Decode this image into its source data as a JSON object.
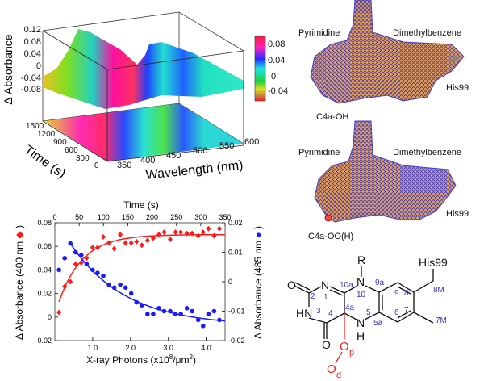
{
  "panel_3d": {
    "z_label": "Δ Absorbance",
    "z_ticks": [
      "0.12",
      "0.08",
      "0.04",
      "0",
      "-0.04",
      "-0.08"
    ],
    "time_label": "Time (s)",
    "time_ticks": [
      "1500",
      "1200",
      "900",
      "600",
      "300",
      "0"
    ],
    "wavelength_label": "Wavelength (nm)",
    "wavelength_ticks": [
      "350",
      "400",
      "450",
      "500",
      "550",
      "600"
    ],
    "colorbar_ticks": [
      "0.08",
      "0.04",
      "0",
      "-0.04"
    ]
  },
  "density_top": {
    "labels": {
      "pyrimidine": "Pyrimidine",
      "dimethylbenzene": "Dimethylbenzene",
      "his": "His99",
      "c4a": "C4a-OH"
    }
  },
  "density_bottom": {
    "labels": {
      "pyrimidine": "Pyrimidine",
      "dimethylbenzene": "Dimethylbenzene",
      "his": "His99",
      "c4a": "C4a-OO(H)"
    }
  },
  "structure": {
    "R": "R",
    "his": "His99",
    "O2": "O",
    "N1": "N",
    "HN3": "HN",
    "O4": "O",
    "N10": "N",
    "N5": "N",
    "H5": "H",
    "Op": "O",
    "Op_sub": "p",
    "Od": "O",
    "Od_sub": "d",
    "numbers": {
      "n2": "2",
      "n1": "1",
      "n3": "3",
      "n4": "4",
      "n4a": "4a",
      "n10a": "10a",
      "n10": "10",
      "n5": "5",
      "n5a": "5a",
      "n9a": "9a",
      "n9": "9",
      "n8": "8",
      "n7": "7",
      "n6": "6",
      "n8M": "8M",
      "n7M": "7M"
    }
  },
  "chart_data": {
    "type": "scatter",
    "title": "",
    "xlabel": "X-ray Photons (x10^8/μm^2)",
    "xlabel_parts": {
      "main": "X-ray Photons (x10",
      "sup1": "8",
      "mid": "/μm",
      "sup2": "2",
      "end": ")"
    },
    "xlim": [
      0,
      4.5
    ],
    "xticks": [
      "1.0",
      "2.0",
      "3.0",
      "4.0"
    ],
    "x2label": "Time (s)",
    "x2lim": [
      0,
      350
    ],
    "x2ticks": [
      "0",
      "50",
      "100",
      "150",
      "200",
      "250",
      "300",
      "350"
    ],
    "ylabel": "Δ Absorbance (400 nm",
    "ylim": [
      -0.02,
      0.08
    ],
    "yticks": [
      "0.08",
      "0.06",
      "0.04",
      "0.02",
      "0",
      "-0.02"
    ],
    "y2label": "Δ Absorbance (485 nm",
    "y2lim": [
      -0.02,
      0.02
    ],
    "y2ticks": [
      "0.02",
      "0.01",
      "0",
      "-0.01",
      "-0.02"
    ],
    "colors": {
      "red": "#ff1a1a",
      "blue": "#1a1aff"
    },
    "series": [
      {
        "name": "400 nm",
        "axis": "left",
        "marker": "diamond",
        "x": [
          0.11,
          0.26,
          0.41,
          0.55,
          0.7,
          0.84,
          1.0,
          1.13,
          1.28,
          1.43,
          1.57,
          1.73,
          1.87,
          2.02,
          2.16,
          2.3,
          2.45,
          2.6,
          2.75,
          2.89,
          3.05,
          3.19,
          3.33,
          3.49,
          3.63,
          3.79,
          3.92,
          4.06,
          4.21,
          4.35
        ],
        "y": [
          0.004,
          0.026,
          0.03,
          0.045,
          0.046,
          0.05,
          0.059,
          0.059,
          0.068,
          0.063,
          0.058,
          0.07,
          0.063,
          0.063,
          0.064,
          0.061,
          0.065,
          0.067,
          0.07,
          0.072,
          0.066,
          0.072,
          0.072,
          0.071,
          0.071,
          0.069,
          0.072,
          0.075,
          0.069,
          0.075
        ],
        "fit": {
          "form": "a - b*exp(-k*x)",
          "a": 0.07,
          "b": 0.068,
          "k": 1.6,
          "x_range": [
            0.11,
            4.5
          ]
        }
      },
      {
        "name": "485 nm",
        "axis": "right",
        "marker": "circle",
        "x": [
          0.11,
          0.26,
          0.41,
          0.55,
          0.7,
          0.84,
          1.0,
          1.13,
          1.28,
          1.43,
          1.57,
          1.73,
          1.87,
          2.02,
          2.16,
          2.3,
          2.45,
          2.6,
          2.75,
          2.89,
          3.05,
          3.19,
          3.33,
          3.49,
          3.63,
          3.79,
          3.92,
          4.06,
          4.21,
          4.35
        ],
        "y": [
          0.004,
          0.008,
          0.013,
          0.01,
          0.009,
          0.006,
          0.004,
          0.003,
          0.002,
          -0.001,
          -0.002,
          -0.001,
          -0.002,
          -0.004,
          -0.007,
          -0.008,
          -0.011,
          -0.011,
          -0.009,
          -0.01,
          -0.01,
          -0.011,
          -0.011,
          -0.009,
          -0.01,
          -0.013,
          -0.015,
          -0.011,
          -0.01,
          -0.013
        ],
        "fit": {
          "form": "a + b*exp(-k*(x-x0))",
          "a": -0.015,
          "b": 0.028,
          "k": 0.69,
          "x0": 0.41,
          "x_range": [
            0.41,
            4.5
          ]
        }
      }
    ]
  }
}
